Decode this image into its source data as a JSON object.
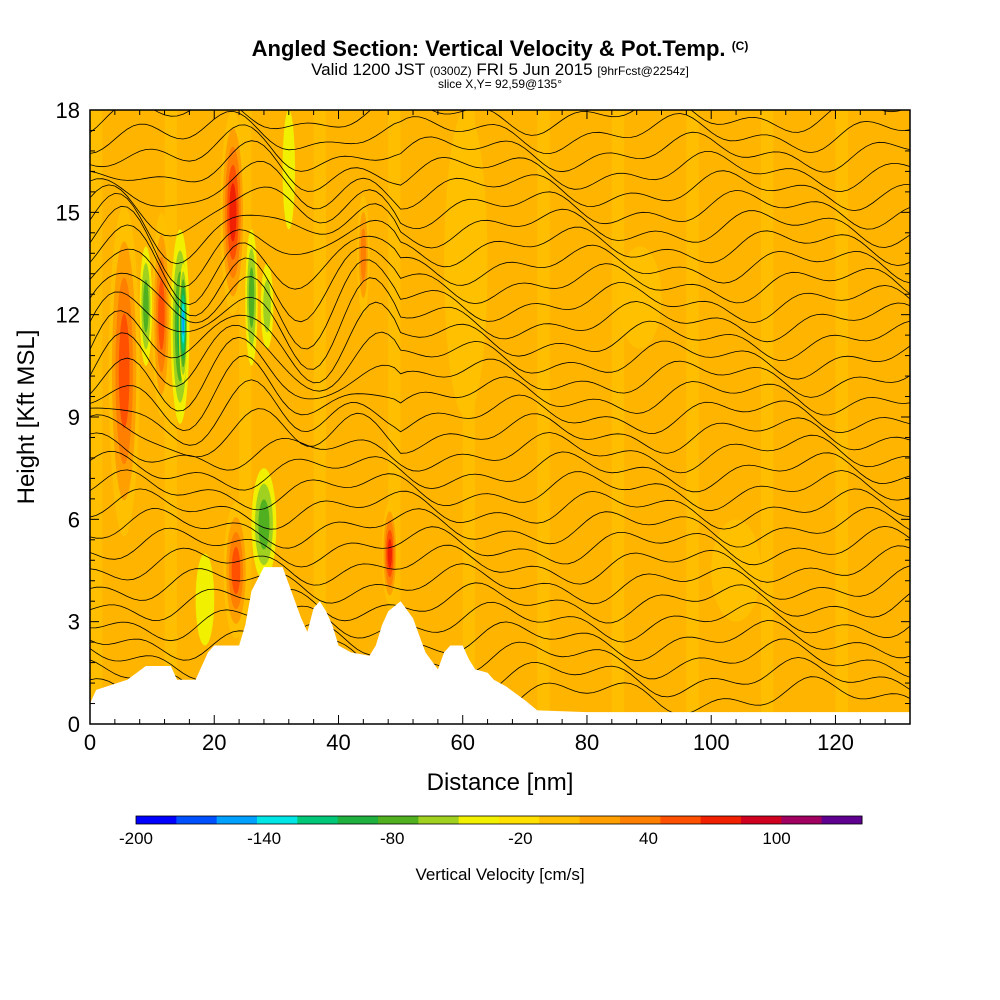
{
  "header": {
    "title": "Angled Section: Vertical Velocity & Pot.Temp.",
    "title_unit": "(C)",
    "valid_prefix": "Valid 1200 JST",
    "valid_zulu": "(0300Z)",
    "valid_date": "FRI 5 Jun 2015",
    "forecast": "[9hrFcst@2254z]",
    "slice": "slice X,Y= 92,59@135°"
  },
  "chart_data": {
    "type": "heatmap",
    "xlabel": "Distance [nm]",
    "ylabel": "Height [Kft MSL]",
    "xlim": [
      0,
      132
    ],
    "ylim": [
      0,
      18
    ],
    "x_ticks": [
      0,
      20,
      40,
      60,
      80,
      100,
      120
    ],
    "y_ticks": [
      0,
      3,
      6,
      9,
      12,
      15,
      18
    ],
    "x_tick_labels": [
      "0",
      "20",
      "40",
      "60",
      "80",
      "100",
      "120"
    ],
    "y_tick_labels": [
      "0",
      "3",
      "6",
      "9",
      "12",
      "15",
      "18"
    ],
    "background_color": "#ffb400",
    "terrain": [
      [
        0,
        0.6
      ],
      [
        1,
        1.0
      ],
      [
        6,
        1.3
      ],
      [
        9,
        1.7
      ],
      [
        13,
        1.7
      ],
      [
        14,
        1.3
      ],
      [
        17,
        1.3
      ],
      [
        18,
        1.7
      ],
      [
        19,
        2.1
      ],
      [
        20,
        2.3
      ],
      [
        24,
        2.3
      ],
      [
        25,
        2.9
      ],
      [
        26,
        3.9
      ],
      [
        28,
        4.6
      ],
      [
        31,
        4.6
      ],
      [
        32,
        4.1
      ],
      [
        33,
        3.6
      ],
      [
        34,
        3.1
      ],
      [
        35,
        2.7
      ],
      [
        36,
        3.4
      ],
      [
        37,
        3.6
      ],
      [
        38,
        3.3
      ],
      [
        39,
        2.9
      ],
      [
        40,
        2.3
      ],
      [
        42,
        2.1
      ],
      [
        45,
        2.0
      ],
      [
        46,
        2.3
      ],
      [
        47,
        2.9
      ],
      [
        48,
        3.3
      ],
      [
        50,
        3.6
      ],
      [
        52,
        3.1
      ],
      [
        53,
        2.6
      ],
      [
        54,
        2.1
      ],
      [
        56,
        1.6
      ],
      [
        57,
        2.1
      ],
      [
        58,
        2.3
      ],
      [
        60,
        2.3
      ],
      [
        61,
        1.9
      ],
      [
        62,
        1.6
      ],
      [
        64,
        1.5
      ],
      [
        65,
        1.3
      ],
      [
        67,
        1.1
      ],
      [
        70,
        0.7
      ],
      [
        72,
        0.4
      ],
      [
        80,
        0.35
      ],
      [
        100,
        0.35
      ],
      [
        132,
        0.35
      ]
    ],
    "velocity_cells": [
      {
        "x": [
          3,
          8
        ],
        "y": [
          5.5,
          15.2
        ],
        "value": 60
      },
      {
        "x": [
          10,
          13
        ],
        "y": [
          9,
          15
        ],
        "value": 60
      },
      {
        "x": [
          8,
          10
        ],
        "y": [
          10.5,
          14
        ],
        "value": -80
      },
      {
        "x": [
          13,
          16
        ],
        "y": [
          8.8,
          14.5
        ],
        "value": -100
      },
      {
        "x": [
          14.3,
          15.7
        ],
        "y": [
          10,
          13.5
        ],
        "value": -160
      },
      {
        "x": [
          21,
          25
        ],
        "y": [
          12,
          18
        ],
        "value": 80
      },
      {
        "x": [
          25,
          27
        ],
        "y": [
          10.5,
          14.5
        ],
        "value": -80
      },
      {
        "x": [
          27.5,
          29.5
        ],
        "y": [
          11,
          13.5
        ],
        "value": -60
      },
      {
        "x": [
          31,
          33
        ],
        "y": [
          14.5,
          18
        ],
        "value": -40
      },
      {
        "x": [
          43,
          45
        ],
        "y": [
          12,
          15.5
        ],
        "value": 40
      },
      {
        "x": [
          26,
          30
        ],
        "y": [
          4.2,
          7.5
        ],
        "value": -80
      },
      {
        "x": [
          21.5,
          25.5
        ],
        "y": [
          2.5,
          6.5
        ],
        "value": 60
      },
      {
        "x": [
          47,
          49.5
        ],
        "y": [
          3.5,
          6.5
        ],
        "value": 80
      },
      {
        "x": [
          17,
          20
        ],
        "y": [
          2.3,
          5
        ],
        "value": -40
      },
      {
        "x": [
          57,
          64
        ],
        "y": [
          9,
          18
        ],
        "value": 0
      },
      {
        "x": [
          85,
          92
        ],
        "y": [
          11,
          14
        ],
        "value": -20
      },
      {
        "x": [
          100,
          108
        ],
        "y": [
          3,
          6
        ],
        "value": 0
      }
    ],
    "potential_temperature_levels": [
      28,
      30,
      32,
      34,
      36,
      38,
      40,
      42,
      44
    ]
  },
  "colorbar": {
    "label": "Vertical Velocity [cm/s]",
    "tick_labels": [
      "-200",
      "-140",
      "-80",
      "-20",
      "40",
      "100"
    ],
    "tick_values": [
      -200,
      -140,
      -80,
      -20,
      40,
      100
    ],
    "min": -200,
    "max": 140,
    "step": 20,
    "colors": [
      "#0000ff",
      "#0050ff",
      "#00a0ff",
      "#00e6e6",
      "#00c878",
      "#20b040",
      "#50b020",
      "#a0d020",
      "#f0f000",
      "#ffe000",
      "#ffc000",
      "#ffa000",
      "#ff8000",
      "#ff5000",
      "#f02000",
      "#d00020",
      "#a00060",
      "#600090"
    ]
  }
}
